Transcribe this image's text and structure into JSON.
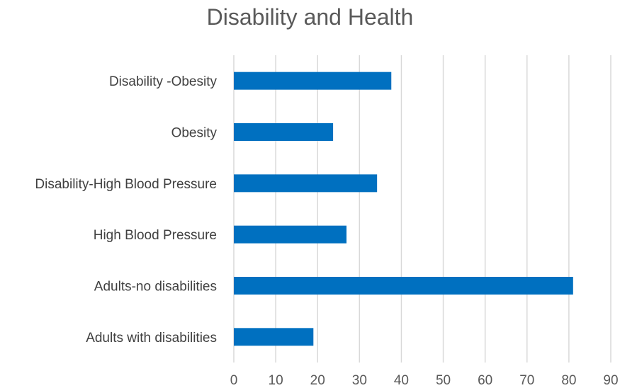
{
  "chart_data": {
    "type": "bar",
    "orientation": "horizontal",
    "title": "Disability and Health",
    "xlabel": "",
    "ylabel": "",
    "categories": [
      "Disability -Obesity",
      "Obesity",
      "Disability-High Blood Pressure",
      "High Blood Pressure",
      "Adults-no disabilities",
      "Adults with disabilities"
    ],
    "values": [
      37.6,
      23.7,
      34.2,
      26.9,
      81.0,
      19.0
    ],
    "xlim": [
      0,
      90
    ],
    "xticks": [
      0,
      10,
      20,
      30,
      40,
      50,
      60,
      70,
      80,
      90
    ],
    "grid": true,
    "legend": "none",
    "colors": {
      "bar": "#0070C0",
      "grid": "#D9D9D9",
      "text": "#595959"
    }
  }
}
